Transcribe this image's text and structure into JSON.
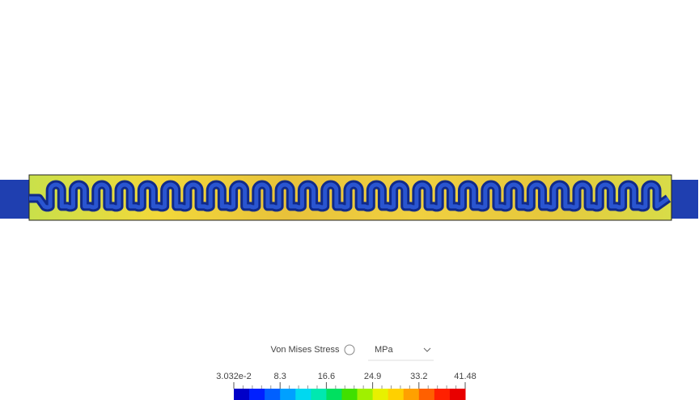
{
  "legend": {
    "title": "Von Mises Stress",
    "unit": "MPa",
    "ticks": [
      "3.032e-2",
      "8.3",
      "16.6",
      "24.9",
      "33.2",
      "41.48"
    ]
  }
}
